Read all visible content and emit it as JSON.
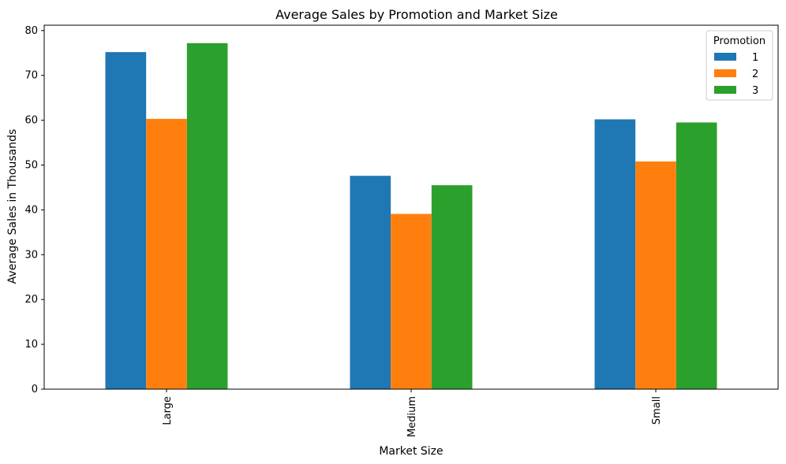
{
  "chart_data": {
    "type": "bar",
    "title": "Average Sales by Promotion and Market Size",
    "xlabel": "Market Size",
    "ylabel": "Average Sales in Thousands",
    "categories": [
      "Large",
      "Medium",
      "Small"
    ],
    "ylim": [
      0,
      81.2
    ],
    "yticks": [
      0,
      10,
      20,
      30,
      40,
      50,
      60,
      70,
      80
    ],
    "grid": false,
    "legend": {
      "title": "Promotion",
      "placement": "top-right"
    },
    "series": [
      {
        "name": "1",
        "color": "#1f77b4",
        "values": [
          75.2,
          47.6,
          60.2
        ]
      },
      {
        "name": "2",
        "color": "#ff7f0e",
        "values": [
          60.3,
          39.1,
          50.8
        ]
      },
      {
        "name": "3",
        "color": "#2ca02c",
        "values": [
          77.2,
          45.5,
          59.5
        ]
      }
    ]
  }
}
